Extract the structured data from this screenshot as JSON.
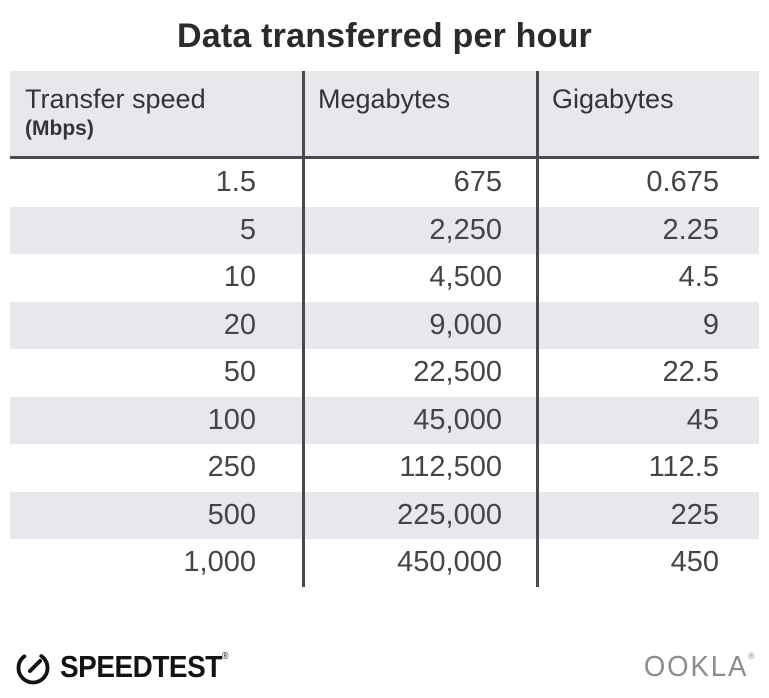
{
  "title": "Data transferred per hour",
  "table": {
    "headers": [
      {
        "label": "Transfer speed",
        "sub": "(Mbps)"
      },
      {
        "label": "Megabytes"
      },
      {
        "label": "Gigabytes"
      }
    ],
    "rows": [
      [
        "1.5",
        "675",
        "0.675"
      ],
      [
        "5",
        "2,250",
        "2.25"
      ],
      [
        "10",
        "4,500",
        "4.5"
      ],
      [
        "20",
        "9,000",
        "9"
      ],
      [
        "50",
        "22,500",
        "22.5"
      ],
      [
        "100",
        "45,000",
        "45"
      ],
      [
        "250",
        "112,500",
        "112.5"
      ],
      [
        "500",
        "225,000",
        "225"
      ],
      [
        "1,000",
        "450,000",
        "450"
      ]
    ]
  },
  "footer": {
    "speedtest_label": "SPEEDTEST",
    "speedtest_reg": "®",
    "ookla_label": "OOKLA",
    "ookla_reg": "®"
  },
  "colors": {
    "title_text": "#2b2a2e",
    "stripe_and_header_bg": "#e8e7eb",
    "divider_line": "#4a494e",
    "body_text": "#454449",
    "speedtest_black": "#131317",
    "ookla_gray": "#8c8c8e"
  },
  "icons": {
    "speedtest_gauge": "gauge-icon"
  },
  "chart_data": {
    "type": "table",
    "title": "Data transferred per hour",
    "columns": [
      "Transfer speed (Mbps)",
      "Megabytes",
      "Gigabytes"
    ],
    "rows": [
      [
        1.5,
        675,
        0.675
      ],
      [
        5,
        2250,
        2.25
      ],
      [
        10,
        4500,
        4.5
      ],
      [
        20,
        9000,
        9
      ],
      [
        50,
        22500,
        22.5
      ],
      [
        100,
        45000,
        45
      ],
      [
        250,
        112500,
        112.5
      ],
      [
        500,
        225000,
        225
      ],
      [
        1000,
        450000,
        450
      ]
    ]
  }
}
